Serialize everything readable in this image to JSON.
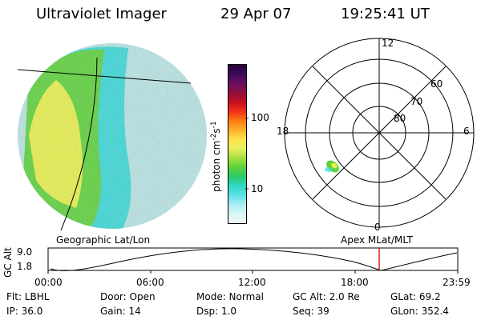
{
  "header": {
    "instrument": "Ultraviolet Imager",
    "date": "29 Apr 07",
    "time": "19:25:41 UT"
  },
  "colorbar": {
    "unit_label": "photon cm",
    "unit_exp1": "-2",
    "unit_s": "s",
    "unit_exp2": "-1",
    "ticks": [
      "100",
      "10"
    ],
    "colors": [
      "#2b003d",
      "#3a0a5a",
      "#6b0f5e",
      "#8c0f3c",
      "#c4101e",
      "#f0301a",
      "#ff7a12",
      "#ffb02a",
      "#ffe34a",
      "#e8f060",
      "#a8e040",
      "#5cd23a",
      "#2ec86a",
      "#30d8c8",
      "#5ee0e8",
      "#a8eef2",
      "#d9f6f8",
      "#f2f6f6"
    ]
  },
  "left_map": {
    "caption": "Geographic Lat/Lon",
    "colors": {
      "outer": "#3ad8d8",
      "mid": "#5cd23a",
      "inner": "#e8f04a",
      "pale": "#b8e4e4"
    }
  },
  "polar": {
    "caption": "Apex MLat/MLT",
    "mlt_labels": {
      "top": "12",
      "bottom": "0",
      "left": "18",
      "right": "6"
    },
    "lat_labels": [
      "60",
      "70",
      "80"
    ]
  },
  "orbit": {
    "ylabel": "GC Alt",
    "y_ticks": [
      "9.0",
      "1.8"
    ],
    "x_ticks": [
      "00:00",
      "06:00",
      "12:00",
      "18:00",
      "23:59"
    ],
    "marker_color": "#d22020"
  },
  "info": {
    "row1": {
      "flt": "Flt: LBHL",
      "door": "Door: Open",
      "mode": "Mode: Normal",
      "gc_alt": "GC Alt: 2.0 Re",
      "glat": "GLat:  69.2"
    },
    "row2": {
      "ip": "IP: 36.0",
      "gain": "Gain: 14",
      "dsp": "Dsp:   1.0",
      "seq": "Seq: 39",
      "glon": "GLon: 352.4"
    }
  }
}
